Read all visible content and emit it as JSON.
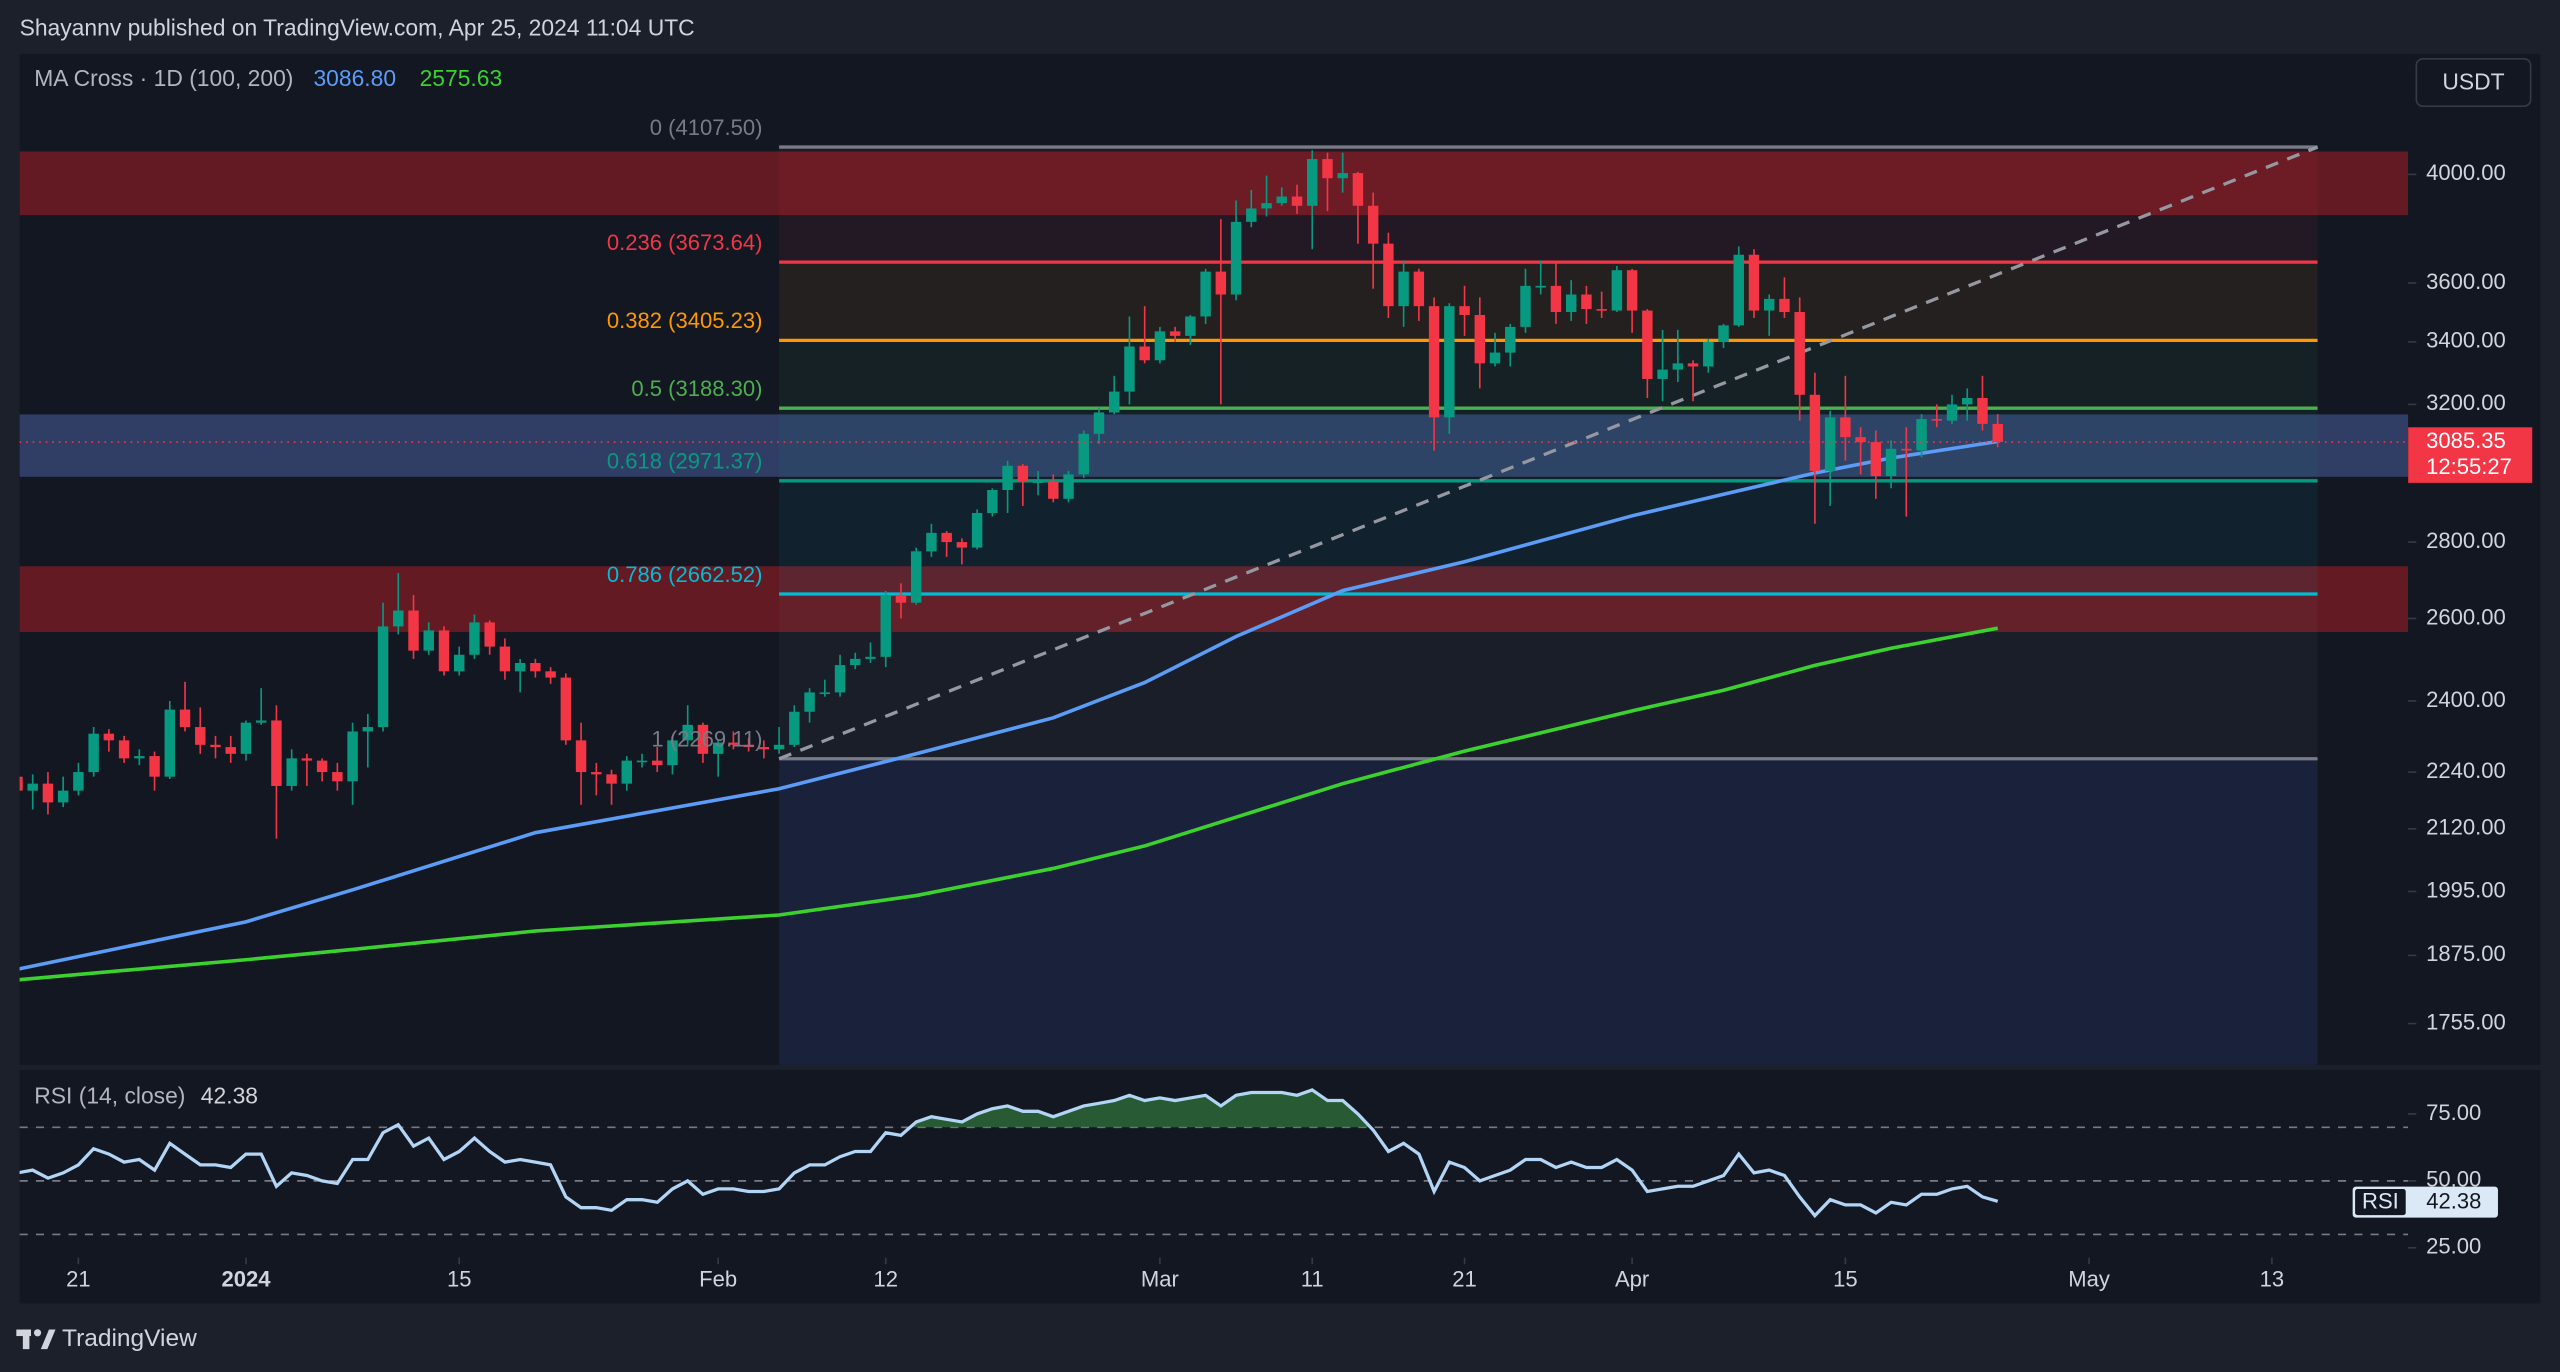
{
  "header": {
    "publisher": "Shayannv published on TradingView.com, Apr 25, 2024 11:04 UTC"
  },
  "currency_button": "USDT",
  "footer": {
    "brand": "TradingView"
  },
  "chart_data": [
    {
      "type": "candlestick",
      "log_scale": true,
      "up_color": "#089981",
      "down_color": "#f23645",
      "ylim": [
        1686,
        4496
      ],
      "yticks": [
        {
          "value": 4000,
          "label": "4000.00"
        },
        {
          "value": 3600,
          "label": "3600.00"
        },
        {
          "value": 3400,
          "label": "3400.00"
        },
        {
          "value": 3200,
          "label": "3200.00"
        },
        {
          "value": 2800,
          "label": "2800.00"
        },
        {
          "value": 2600,
          "label": "2600.00"
        },
        {
          "value": 2400,
          "label": "2400.00"
        },
        {
          "value": 2240,
          "label": "2240.00"
        },
        {
          "value": 2120,
          "label": "2120.00"
        },
        {
          "value": 1995,
          "label": "1995.00"
        },
        {
          "value": 1875,
          "label": "1875.00"
        },
        {
          "value": 1755,
          "label": "1755.00"
        }
      ],
      "xlim": [
        "2023-12-17",
        "2024-05-22"
      ],
      "xticks": [
        {
          "value": "2023-12-21",
          "label": "21"
        },
        {
          "value": "2024-01-01",
          "label": "2024"
        },
        {
          "value": "2024-01-15",
          "label": "15"
        },
        {
          "value": "2024-02-01",
          "label": "Feb"
        },
        {
          "value": "2024-02-12",
          "label": "12"
        },
        {
          "value": "2024-03-01",
          "label": "Mar"
        },
        {
          "value": "2024-03-11",
          "label": "11"
        },
        {
          "value": "2024-03-21",
          "label": "21"
        },
        {
          "value": "2024-04-01",
          "label": "Apr"
        },
        {
          "value": "2024-04-15",
          "label": "15"
        },
        {
          "value": "2024-05-01",
          "label": "May"
        },
        {
          "value": "2024-05-13",
          "label": "13"
        }
      ],
      "start": "2023-12-17",
      "ohlc": [
        [
          2230,
          2250,
          2180,
          2200
        ],
        [
          2200,
          2235,
          2160,
          2215
        ],
        [
          2215,
          2240,
          2150,
          2175
        ],
        [
          2175,
          2230,
          2165,
          2200
        ],
        [
          2200,
          2260,
          2190,
          2240
        ],
        [
          2240,
          2340,
          2230,
          2325
        ],
        [
          2325,
          2335,
          2285,
          2310
        ],
        [
          2310,
          2320,
          2260,
          2270
        ],
        [
          2270,
          2290,
          2255,
          2275
        ],
        [
          2275,
          2285,
          2200,
          2230
        ],
        [
          2230,
          2400,
          2225,
          2380
        ],
        [
          2380,
          2445,
          2330,
          2340
        ],
        [
          2340,
          2385,
          2280,
          2300
        ],
        [
          2300,
          2320,
          2270,
          2295
        ],
        [
          2295,
          2320,
          2260,
          2280
        ],
        [
          2280,
          2355,
          2265,
          2350
        ],
        [
          2350,
          2430,
          2345,
          2355
        ],
        [
          2355,
          2390,
          2100,
          2210
        ],
        [
          2210,
          2290,
          2200,
          2270
        ],
        [
          2270,
          2280,
          2210,
          2265
        ],
        [
          2265,
          2270,
          2220,
          2240
        ],
        [
          2240,
          2260,
          2200,
          2220
        ],
        [
          2220,
          2350,
          2170,
          2330
        ],
        [
          2330,
          2370,
          2250,
          2340
        ],
        [
          2340,
          2640,
          2330,
          2580
        ],
        [
          2580,
          2717,
          2560,
          2620
        ],
        [
          2620,
          2660,
          2500,
          2520
        ],
        [
          2520,
          2590,
          2510,
          2570
        ],
        [
          2570,
          2580,
          2460,
          2470
        ],
        [
          2470,
          2530,
          2460,
          2510
        ],
        [
          2510,
          2610,
          2500,
          2590
        ],
        [
          2590,
          2595,
          2510,
          2530
        ],
        [
          2530,
          2550,
          2450,
          2470
        ],
        [
          2470,
          2500,
          2420,
          2490
        ],
        [
          2490,
          2500,
          2455,
          2470
        ],
        [
          2470,
          2480,
          2440,
          2455
        ],
        [
          2455,
          2465,
          2300,
          2310
        ],
        [
          2310,
          2350,
          2170,
          2240
        ],
        [
          2240,
          2260,
          2190,
          2235
        ],
        [
          2235,
          2245,
          2170,
          2215
        ],
        [
          2215,
          2275,
          2200,
          2265
        ],
        [
          2265,
          2280,
          2250,
          2265
        ],
        [
          2265,
          2295,
          2240,
          2255
        ],
        [
          2255,
          2320,
          2235,
          2310
        ],
        [
          2310,
          2390,
          2300,
          2345
        ],
        [
          2345,
          2350,
          2260,
          2280
        ],
        [
          2280,
          2310,
          2230,
          2305
        ],
        [
          2305,
          2330,
          2290,
          2300
        ],
        [
          2300,
          2315,
          2285,
          2295
        ],
        [
          2295,
          2310,
          2270,
          2290
        ],
        [
          2290,
          2340,
          2280,
          2300
        ],
        [
          2300,
          2390,
          2295,
          2375
        ],
        [
          2375,
          2430,
          2350,
          2420
        ],
        [
          2420,
          2450,
          2410,
          2420
        ],
        [
          2420,
          2510,
          2410,
          2485
        ],
        [
          2485,
          2515,
          2475,
          2500
        ],
        [
          2500,
          2540,
          2490,
          2505
        ],
        [
          2505,
          2670,
          2480,
          2660
        ],
        [
          2660,
          2690,
          2600,
          2640
        ],
        [
          2640,
          2785,
          2635,
          2775
        ],
        [
          2775,
          2850,
          2760,
          2825
        ],
        [
          2825,
          2830,
          2760,
          2800
        ],
        [
          2800,
          2810,
          2740,
          2785
        ],
        [
          2785,
          2890,
          2780,
          2880
        ],
        [
          2880,
          2950,
          2870,
          2945
        ],
        [
          2945,
          3030,
          2880,
          3015
        ],
        [
          3015,
          3020,
          2900,
          2970
        ],
        [
          2970,
          3000,
          2930,
          2970
        ],
        [
          2970,
          2990,
          2910,
          2920
        ],
        [
          2920,
          3000,
          2910,
          2990
        ],
        [
          2990,
          3120,
          2980,
          3110
        ],
        [
          3110,
          3190,
          3080,
          3175
        ],
        [
          3175,
          3290,
          3170,
          3240
        ],
        [
          3240,
          3485,
          3200,
          3385
        ],
        [
          3385,
          3520,
          3330,
          3340
        ],
        [
          3340,
          3450,
          3330,
          3435
        ],
        [
          3435,
          3450,
          3400,
          3420
        ],
        [
          3420,
          3490,
          3390,
          3485
        ],
        [
          3485,
          3650,
          3460,
          3640
        ],
        [
          3640,
          3830,
          3200,
          3560
        ],
        [
          3560,
          3900,
          3540,
          3820
        ],
        [
          3820,
          3940,
          3800,
          3870
        ],
        [
          3870,
          3995,
          3840,
          3890
        ],
        [
          3890,
          3950,
          3880,
          3915
        ],
        [
          3915,
          3960,
          3850,
          3880
        ],
        [
          3880,
          4095,
          3720,
          4060
        ],
        [
          4060,
          4085,
          3860,
          3985
        ],
        [
          3985,
          4085,
          3930,
          4005
        ],
        [
          4005,
          4010,
          3740,
          3880
        ],
        [
          3880,
          3930,
          3580,
          3740
        ],
        [
          3740,
          3780,
          3480,
          3520
        ],
        [
          3520,
          3680,
          3450,
          3640
        ],
        [
          3640,
          3650,
          3470,
          3520
        ],
        [
          3520,
          3550,
          3060,
          3160
        ],
        [
          3160,
          3530,
          3110,
          3520
        ],
        [
          3520,
          3590,
          3420,
          3490
        ],
        [
          3490,
          3550,
          3250,
          3330
        ],
        [
          3330,
          3430,
          3320,
          3365
        ],
        [
          3365,
          3460,
          3320,
          3450
        ],
        [
          3450,
          3650,
          3430,
          3590
        ],
        [
          3590,
          3680,
          3560,
          3590
        ],
        [
          3590,
          3670,
          3460,
          3500
        ],
        [
          3500,
          3610,
          3470,
          3560
        ],
        [
          3560,
          3590,
          3460,
          3510
        ],
        [
          3510,
          3570,
          3480,
          3505
        ],
        [
          3505,
          3660,
          3500,
          3645
        ],
        [
          3645,
          3650,
          3430,
          3505
        ],
        [
          3505,
          3510,
          3220,
          3280
        ],
        [
          3280,
          3440,
          3210,
          3310
        ],
        [
          3310,
          3440,
          3270,
          3330
        ],
        [
          3330,
          3340,
          3210,
          3320
        ],
        [
          3320,
          3410,
          3300,
          3400
        ],
        [
          3400,
          3460,
          3380,
          3455
        ],
        [
          3455,
          3730,
          3450,
          3700
        ],
        [
          3700,
          3720,
          3480,
          3505
        ],
        [
          3505,
          3560,
          3420,
          3545
        ],
        [
          3545,
          3620,
          3480,
          3500
        ],
        [
          3500,
          3550,
          3150,
          3230
        ],
        [
          3230,
          3300,
          2850,
          3000
        ],
        [
          3000,
          3180,
          2900,
          3160
        ],
        [
          3160,
          3290,
          3030,
          3100
        ],
        [
          3100,
          3130,
          2990,
          3085
        ],
        [
          3085,
          3120,
          2920,
          2985
        ],
        [
          2985,
          3090,
          2950,
          3065
        ],
        [
          3065,
          3130,
          2870,
          3060
        ],
        [
          3060,
          3170,
          3040,
          3155
        ],
        [
          3155,
          3200,
          3130,
          3150
        ],
        [
          3150,
          3230,
          3140,
          3200
        ],
        [
          3200,
          3250,
          3150,
          3220
        ],
        [
          3220,
          3290,
          3120,
          3140
        ],
        [
          3140,
          3170,
          3070,
          3085.35
        ]
      ],
      "last_price": 3085.35,
      "countdown": "12:55:27",
      "ma": {
        "title": "MA Cross · 1D (100, 200)",
        "x": [
          "2023-12-17",
          "2024-01-01",
          "2024-01-08",
          "2024-01-20",
          "2024-02-05",
          "2024-02-14",
          "2024-02-23",
          "2024-02-29",
          "2024-03-06",
          "2024-03-13",
          "2024-03-21",
          "2024-04-01",
          "2024-04-07",
          "2024-04-13",
          "2024-04-18",
          "2024-04-25"
        ],
        "series": [
          {
            "color": "#5b9cf6",
            "values": [
              1850,
              1937,
              1998,
              2112,
              2204,
              2280,
              2361,
              2443,
              2555,
              2671,
              2747,
              2872,
              2933,
              2994,
              3038,
              3086.8
            ],
            "value_labels": [
              null,
              null,
              null,
              null,
              null,
              null,
              null,
              null,
              null,
              null,
              null,
              null,
              null,
              null,
              null,
              "3086.80"
            ]
          },
          {
            "color": "#3bd12e",
            "values": [
              1831,
              1867,
              1886,
              1920,
              1950,
              1987,
              2040,
              2085,
              2144,
              2215,
              2286,
              2377,
              2425,
              2484,
              2526,
              2575.63
            ]
          }
        ]
      },
      "zones": [
        {
          "range": [
            3845,
            4090
          ],
          "color": "#6e1b23"
        },
        {
          "range": [
            2983,
            3169
          ],
          "color": "#34426e"
        },
        {
          "range": [
            2566,
            2735
          ],
          "color": "#6e1b23"
        }
      ],
      "fib": {
        "x": [
          "2024-02-05",
          "2024-05-16"
        ],
        "levels": [
          {
            "value": 4107.5,
            "label": "0 (4107.50)",
            "color": "#787b86"
          },
          {
            "value": 3673.64,
            "label": "0.236 (3673.64)",
            "color": "#f23645"
          },
          {
            "value": 3405.23,
            "label": "0.382 (3405.23)",
            "color": "#ff9800"
          },
          {
            "value": 3188.3,
            "label": "0.5 (3188.30)",
            "color": "#4caf50"
          },
          {
            "value": 2971.37,
            "label": "0.618 (2971.37)",
            "color": "#089981"
          },
          {
            "value": 2662.52,
            "label": "0.786 (2662.52)",
            "color": "#00bcd4"
          },
          {
            "value": 2269.11,
            "label": "1 (2269.11)",
            "color": "#787b86"
          }
        ]
      },
      "trendline": {
        "x": [
          "2024-02-05",
          "2024-05-16"
        ],
        "values": [
          2269.11,
          4107.5
        ],
        "color": "#9598a1"
      }
    },
    {
      "type": "line",
      "title": "RSI (14, close)",
      "badge": "RSI",
      "color": "#b2d4f5",
      "overbought_fill": "#2e6b3a",
      "start": "2023-12-17",
      "ylim": [
        21.3,
        91.5
      ],
      "yticks": [
        {
          "value": 75,
          "label": "75.00"
        },
        {
          "value": 50,
          "label": "50.00"
        },
        {
          "value": 25,
          "label": "25.00"
        }
      ],
      "levels": [
        70,
        50,
        30
      ],
      "values": [
        53,
        54,
        51,
        53,
        56,
        62,
        60,
        57,
        58,
        54,
        64,
        60,
        56,
        56,
        55,
        60,
        60,
        48,
        53,
        52,
        50,
        49,
        58,
        58,
        68,
        71,
        63,
        66,
        58,
        61,
        66,
        61,
        57,
        58,
        57,
        56,
        44,
        40,
        40,
        39,
        43,
        43,
        42,
        47,
        50,
        45,
        47,
        47,
        46,
        46,
        47,
        53,
        56,
        56,
        59,
        61,
        61,
        68,
        67,
        72,
        74,
        73,
        72,
        75,
        77,
        78,
        76,
        76,
        74,
        76,
        78,
        79,
        80,
        82,
        80,
        81,
        80,
        81,
        82,
        78,
        82,
        83,
        83,
        83,
        82,
        84,
        80,
        80,
        75,
        69,
        61,
        64,
        60,
        46,
        57,
        55,
        50,
        52,
        54,
        58,
        58,
        55,
        57,
        55,
        55,
        58,
        54,
        46,
        47,
        48,
        48,
        50,
        52,
        60,
        53,
        54,
        52,
        44,
        37,
        43,
        41,
        41,
        38,
        42,
        41,
        45,
        45,
        47,
        48,
        44,
        42.38
      ]
    }
  ]
}
